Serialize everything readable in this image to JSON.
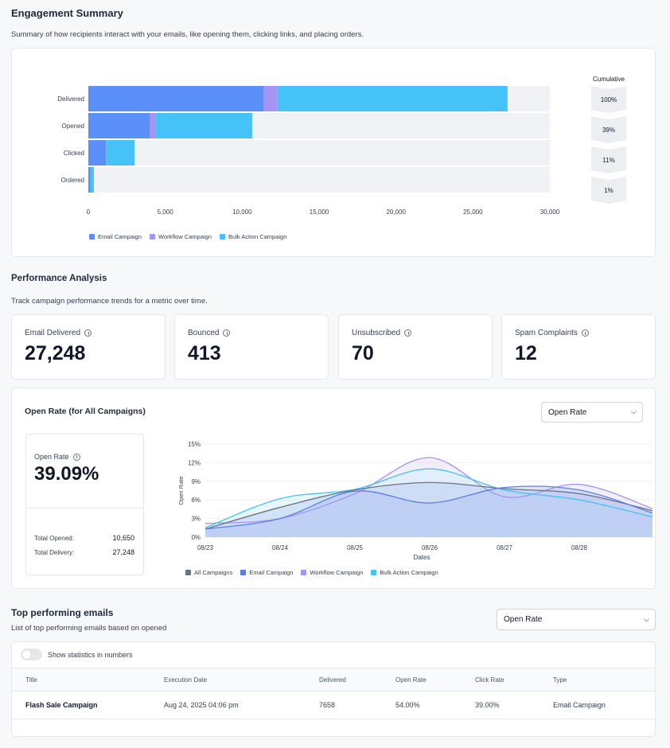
{
  "engagement": {
    "title": "Engagement Summary",
    "description": "Summary of how recipients interact with your emails, like opening them, clicking links, and placing orders.",
    "cumulative_label": "Cumulative",
    "chart_data": {
      "type": "bar",
      "orientation": "horizontal",
      "stacked": true,
      "categories": [
        "Delivered",
        "Opened",
        "Clicked",
        "Ordered"
      ],
      "series": [
        {
          "name": "Email Campaign",
          "color": "#5b8ff9",
          "values": [
            11400,
            4000,
            1150,
            150
          ]
        },
        {
          "name": "Workflow Campaign",
          "color": "#a594f5",
          "values": [
            900,
            350,
            50,
            10
          ]
        },
        {
          "name": "Bulk Action Campaign",
          "color": "#45c2f7",
          "values": [
            14948,
            6300,
            1800,
            200
          ]
        }
      ],
      "xlim": [
        0,
        30000
      ],
      "x_ticks": [
        "0",
        "5,000",
        "10,000",
        "15,000",
        "20,000",
        "25,000",
        "30,000"
      ],
      "cumulative": [
        "100%",
        "39%",
        "11%",
        "1%"
      ],
      "legend_position": "bottom-left"
    }
  },
  "performance": {
    "title": "Performance Analysis",
    "description": "Track campaign performance trends for a metric over time.",
    "stats": [
      {
        "label": "Email Delivered",
        "value": "27,248"
      },
      {
        "label": "Bounced",
        "value": "413"
      },
      {
        "label": "Unsubscribed",
        "value": "70"
      },
      {
        "label": "Spam Complaints",
        "value": "12"
      }
    ]
  },
  "open_rate": {
    "title": "Open Rate (for All Campaigns)",
    "select_value": "Open Rate",
    "summary_label": "Open Rate",
    "summary_value": "39.09%",
    "total_opened_label": "Total Opened:",
    "total_opened_value": "10,650",
    "total_delivery_label": "Total Delivery:",
    "total_delivery_value": "27,248",
    "chart_data": {
      "type": "area",
      "x": [
        "08/23",
        "08/24",
        "08/25",
        "08/26",
        "08/27",
        "08/28",
        "08/29"
      ],
      "x_ticks": [
        "08/23",
        "08/24",
        "08/25",
        "08/26",
        "08/27",
        "08/28"
      ],
      "xlabel": "Dates",
      "ylabel": "Open Rate",
      "ylim": [
        0,
        15
      ],
      "y_ticks": [
        "0%",
        "3%",
        "6%",
        "9%",
        "12%",
        "15%"
      ],
      "series": [
        {
          "name": "All Campaigns",
          "color": "#6b7280",
          "values": [
            1.3,
            4.8,
            7.6,
            8.8,
            7.8,
            7.0,
            4.2
          ]
        },
        {
          "name": "Email Campaign",
          "color": "#5b7fe8",
          "values": [
            1.3,
            3.0,
            7.4,
            5.5,
            8.0,
            7.6,
            3.8
          ]
        },
        {
          "name": "Workflow Campaign",
          "color": "#a594f5",
          "values": [
            2.2,
            3.0,
            7.0,
            12.8,
            6.5,
            8.5,
            4.5
          ]
        },
        {
          "name": "Bulk Action Campaign",
          "color": "#45c2f7",
          "values": [
            1.5,
            6.2,
            7.7,
            11.0,
            7.6,
            6.0,
            3.2
          ]
        }
      ],
      "legend_position": "bottom-left"
    }
  },
  "top_emails": {
    "title": "Top performing emails",
    "description": "List of top performing emails based on opened",
    "select_value": "Open Rate",
    "toggle_label": "Show statistics in numbers",
    "columns": [
      "Title",
      "Execution Date",
      "Delivered",
      "Open Rate",
      "Click Rate",
      "Type"
    ],
    "rows": [
      {
        "title": "Flash Sale Campaign",
        "date": "Aug 24, 2025 04:06 pm",
        "delivered": "7658",
        "open_rate": "54.00%",
        "click_rate": "39.00%",
        "type": "Email Campaign"
      }
    ]
  }
}
